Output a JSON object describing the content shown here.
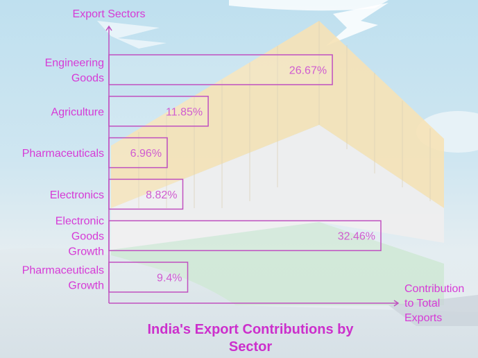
{
  "chart_data": {
    "type": "bar",
    "orientation": "horizontal",
    "title": "India's Export Contributions by Sector",
    "title_lines": [
      "India's Export Contributions by",
      "Sector"
    ],
    "xlabel": "Contribution to Total Exports",
    "xlabel_lines": [
      "Contribution",
      "to Total",
      "Exports"
    ],
    "ylabel": "Export Sectors",
    "categories": [
      "Engineering Goods",
      "Agriculture",
      "Pharmaceuticals",
      "Electronics",
      "Electronic Goods Growth",
      "Pharmaceuticals Growth"
    ],
    "category_lines": [
      [
        "Engineering",
        "Goods"
      ],
      [
        "Agriculture"
      ],
      [
        "Pharmaceuticals"
      ],
      [
        "Electronics"
      ],
      [
        "Electronic",
        "Goods",
        "Growth"
      ],
      [
        "Pharmaceuticals",
        "Growth"
      ]
    ],
    "values": [
      26.67,
      11.85,
      6.96,
      8.82,
      32.46,
      9.4
    ],
    "value_labels": [
      "26.67%",
      "11.85%",
      "6.96%",
      "8.82%",
      "32.46%",
      "9.4%"
    ],
    "unit": "%",
    "grid": false,
    "legend": null,
    "bar_style": "outline",
    "colors": {
      "accent": "#cc33cc",
      "bar_stroke": "#c050c0",
      "label": "#d63ad6"
    }
  }
}
